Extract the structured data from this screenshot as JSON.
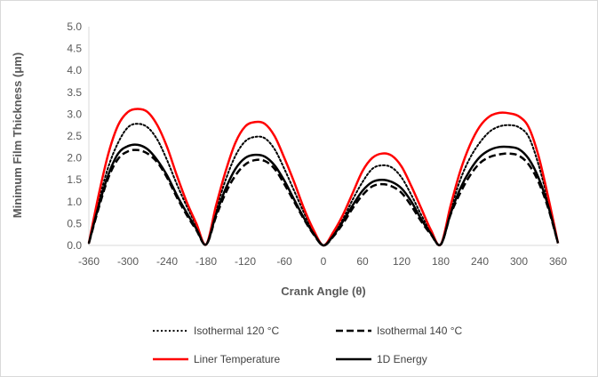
{
  "chart_data": {
    "type": "line",
    "title": "",
    "xlabel": "Crank Angle (θ)",
    "ylabel": "Minimum Film Thickness (μm)",
    "xlim": [
      -360,
      360
    ],
    "ylim": [
      0,
      5
    ],
    "xticks": [
      -360,
      -300,
      -240,
      -180,
      -120,
      -60,
      0,
      60,
      120,
      180,
      240,
      300,
      360
    ],
    "yticks": [
      "0.0",
      "0.5",
      "1.0",
      "1.5",
      "2.0",
      "2.5",
      "3.0",
      "3.5",
      "4.0",
      "4.5",
      "5.0"
    ],
    "grid": false,
    "legend_position": "bottom",
    "series": [
      {
        "name": "Isothermal 120 °C",
        "color": "#000000",
        "style": "dotted",
        "x": [
          -360,
          -345,
          -330,
          -315,
          -300,
          -285,
          -270,
          -255,
          -240,
          -225,
          -210,
          -195,
          -180,
          -165,
          -150,
          -135,
          -120,
          -105,
          -90,
          -75,
          -60,
          -45,
          -30,
          -15,
          0,
          15,
          30,
          45,
          60,
          75,
          90,
          105,
          120,
          135,
          150,
          165,
          180,
          195,
          210,
          225,
          240,
          255,
          270,
          285,
          300,
          315,
          330,
          345,
          360
        ],
        "y": [
          0.05,
          1.0,
          1.8,
          2.35,
          2.7,
          2.78,
          2.7,
          2.42,
          1.95,
          1.4,
          0.9,
          0.45,
          0.02,
          0.8,
          1.5,
          2.05,
          2.38,
          2.48,
          2.45,
          2.2,
          1.75,
          1.25,
          0.75,
          0.3,
          0.0,
          0.25,
          0.6,
          1.05,
          1.45,
          1.75,
          1.83,
          1.78,
          1.55,
          1.15,
          0.7,
          0.3,
          0.02,
          0.8,
          1.5,
          2.0,
          2.35,
          2.6,
          2.72,
          2.75,
          2.7,
          2.48,
          1.85,
          1.0,
          0.05
        ]
      },
      {
        "name": "Isothermal 140 °C",
        "color": "#000000",
        "style": "dashed",
        "x": [
          -360,
          -345,
          -330,
          -315,
          -300,
          -285,
          -270,
          -255,
          -240,
          -225,
          -210,
          -195,
          -180,
          -165,
          -150,
          -135,
          -120,
          -105,
          -90,
          -75,
          -60,
          -45,
          -30,
          -15,
          0,
          15,
          30,
          45,
          60,
          75,
          90,
          105,
          120,
          135,
          150,
          165,
          180,
          195,
          210,
          225,
          240,
          255,
          270,
          285,
          300,
          315,
          330,
          345,
          360
        ],
        "y": [
          0.05,
          0.85,
          1.55,
          1.98,
          2.15,
          2.18,
          2.1,
          1.9,
          1.55,
          1.1,
          0.7,
          0.35,
          0.02,
          0.65,
          1.2,
          1.6,
          1.85,
          1.95,
          1.93,
          1.75,
          1.4,
          1.0,
          0.6,
          0.25,
          0.0,
          0.2,
          0.5,
          0.85,
          1.15,
          1.35,
          1.4,
          1.35,
          1.2,
          0.9,
          0.55,
          0.25,
          0.02,
          0.7,
          1.2,
          1.6,
          1.88,
          2.02,
          2.08,
          2.1,
          2.05,
          1.85,
          1.45,
          0.85,
          0.05
        ]
      },
      {
        "name": "Liner Temperature",
        "color": "#ff0000",
        "style": "solid",
        "x": [
          -360,
          -345,
          -330,
          -315,
          -300,
          -285,
          -270,
          -255,
          -240,
          -225,
          -210,
          -195,
          -180,
          -165,
          -150,
          -135,
          -120,
          -105,
          -90,
          -75,
          -60,
          -45,
          -30,
          -15,
          0,
          15,
          30,
          45,
          60,
          75,
          90,
          105,
          120,
          135,
          150,
          165,
          180,
          195,
          210,
          225,
          240,
          255,
          270,
          285,
          300,
          315,
          330,
          345,
          360
        ],
        "y": [
          0.05,
          1.15,
          2.1,
          2.75,
          3.05,
          3.12,
          3.05,
          2.75,
          2.25,
          1.6,
          1.0,
          0.5,
          0.02,
          0.9,
          1.7,
          2.35,
          2.72,
          2.82,
          2.78,
          2.5,
          2.0,
          1.45,
          0.85,
          0.35,
          0.0,
          0.3,
          0.7,
          1.2,
          1.7,
          2.0,
          2.1,
          2.05,
          1.8,
          1.35,
          0.85,
          0.35,
          0.02,
          0.9,
          1.7,
          2.3,
          2.72,
          2.95,
          3.03,
          3.02,
          2.95,
          2.7,
          2.05,
          1.1,
          0.05
        ]
      },
      {
        "name": "1D Energy",
        "color": "#000000",
        "style": "solid",
        "x": [
          -360,
          -345,
          -330,
          -315,
          -300,
          -285,
          -270,
          -255,
          -240,
          -225,
          -210,
          -195,
          -180,
          -165,
          -150,
          -135,
          -120,
          -105,
          -90,
          -75,
          -60,
          -45,
          -30,
          -15,
          0,
          15,
          30,
          45,
          60,
          75,
          90,
          105,
          120,
          135,
          150,
          165,
          180,
          195,
          210,
          225,
          240,
          255,
          270,
          285,
          300,
          315,
          330,
          345,
          360
        ],
        "y": [
          0.05,
          0.9,
          1.62,
          2.1,
          2.27,
          2.3,
          2.2,
          1.95,
          1.6,
          1.15,
          0.75,
          0.38,
          0.02,
          0.7,
          1.3,
          1.75,
          2.0,
          2.07,
          2.03,
          1.83,
          1.48,
          1.05,
          0.63,
          0.27,
          0.0,
          0.22,
          0.55,
          0.92,
          1.25,
          1.45,
          1.5,
          1.45,
          1.3,
          1.0,
          0.6,
          0.27,
          0.02,
          0.72,
          1.3,
          1.72,
          2.02,
          2.18,
          2.25,
          2.25,
          2.2,
          1.98,
          1.55,
          0.9,
          0.05
        ]
      }
    ]
  }
}
